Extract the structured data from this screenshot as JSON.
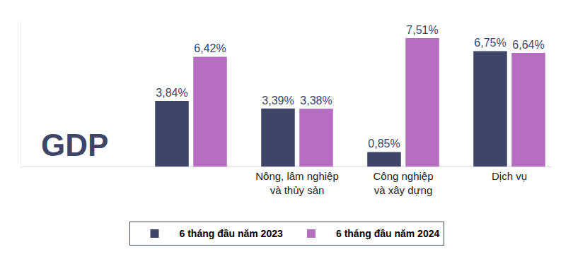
{
  "chart_data": {
    "type": "bar",
    "categories": [
      null,
      "Nông, lâm nghiệp\nvà thủy sản",
      "Công nghiệp\nvà xây dựng",
      "Dịch vụ"
    ],
    "series": [
      {
        "name": "6 tháng đầu năm 2023",
        "color": "#3e4568",
        "values": [
          3.84,
          3.39,
          0.85,
          6.75
        ],
        "value_labels": [
          "3,84%",
          "3,39%",
          "0,85%",
          "6,75%"
        ]
      },
      {
        "name": "6 tháng đầu năm 2024",
        "color": "#b56ec0",
        "values": [
          6.42,
          3.38,
          7.51,
          6.64
        ],
        "value_labels": [
          "6,42%",
          "3,38%",
          "7,51%",
          "6,64%"
        ]
      }
    ],
    "annotations": [
      {
        "text": "GDP",
        "category": 0
      }
    ],
    "ylim": [
      0,
      8.5
    ],
    "yticks": [],
    "grid": false,
    "legend": "bottom",
    "data_labels": true,
    "tick_labels": "x"
  }
}
